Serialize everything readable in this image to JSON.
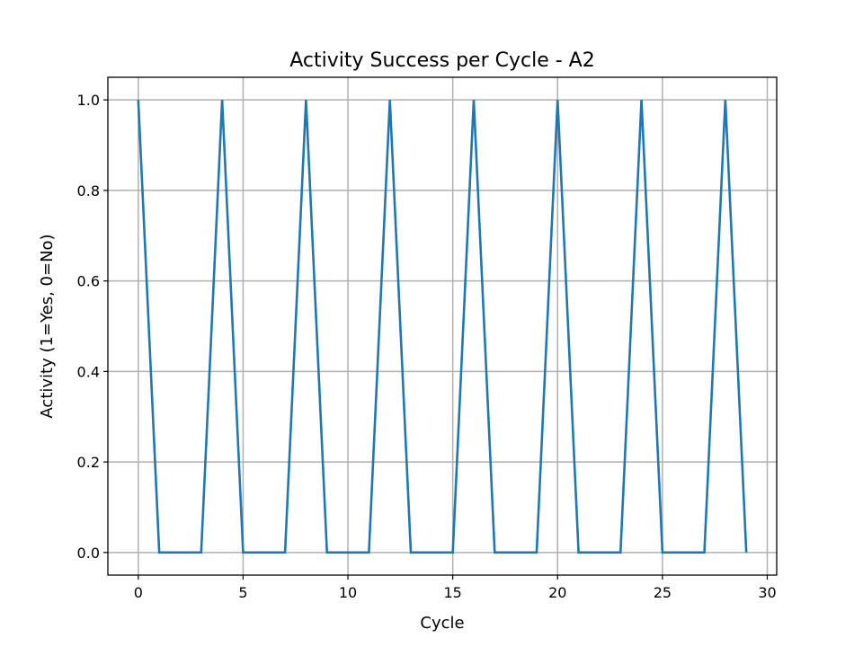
{
  "chart_data": {
    "type": "line",
    "title": "Activity Success per Cycle - A2",
    "xlabel": "Cycle",
    "ylabel": "Activity (1=Yes, 0=No)",
    "xlim": [
      -1.45,
      30.45
    ],
    "ylim": [
      -0.05,
      1.05
    ],
    "xticks": [
      0,
      5,
      10,
      15,
      20,
      25,
      30
    ],
    "xtick_labels": [
      "0",
      "5",
      "10",
      "15",
      "20",
      "25",
      "30"
    ],
    "yticks": [
      0.0,
      0.2,
      0.4,
      0.6,
      0.8,
      1.0
    ],
    "ytick_labels": [
      "0.0",
      "0.2",
      "0.4",
      "0.6",
      "0.8",
      "1.0"
    ],
    "grid": true,
    "series": [
      {
        "color": "#1f77b4",
        "x": [
          0,
          1,
          2,
          3,
          4,
          5,
          6,
          7,
          8,
          9,
          10,
          11,
          12,
          13,
          14,
          15,
          16,
          17,
          18,
          19,
          20,
          21,
          22,
          23,
          24,
          25,
          26,
          27,
          28,
          29
        ],
        "y": [
          1,
          0,
          0,
          0,
          1,
          0,
          0,
          0,
          1,
          0,
          0,
          0,
          1,
          0,
          0,
          0,
          1,
          0,
          0,
          0,
          1,
          0,
          0,
          0,
          1,
          0,
          0,
          0,
          1,
          0
        ]
      }
    ]
  }
}
